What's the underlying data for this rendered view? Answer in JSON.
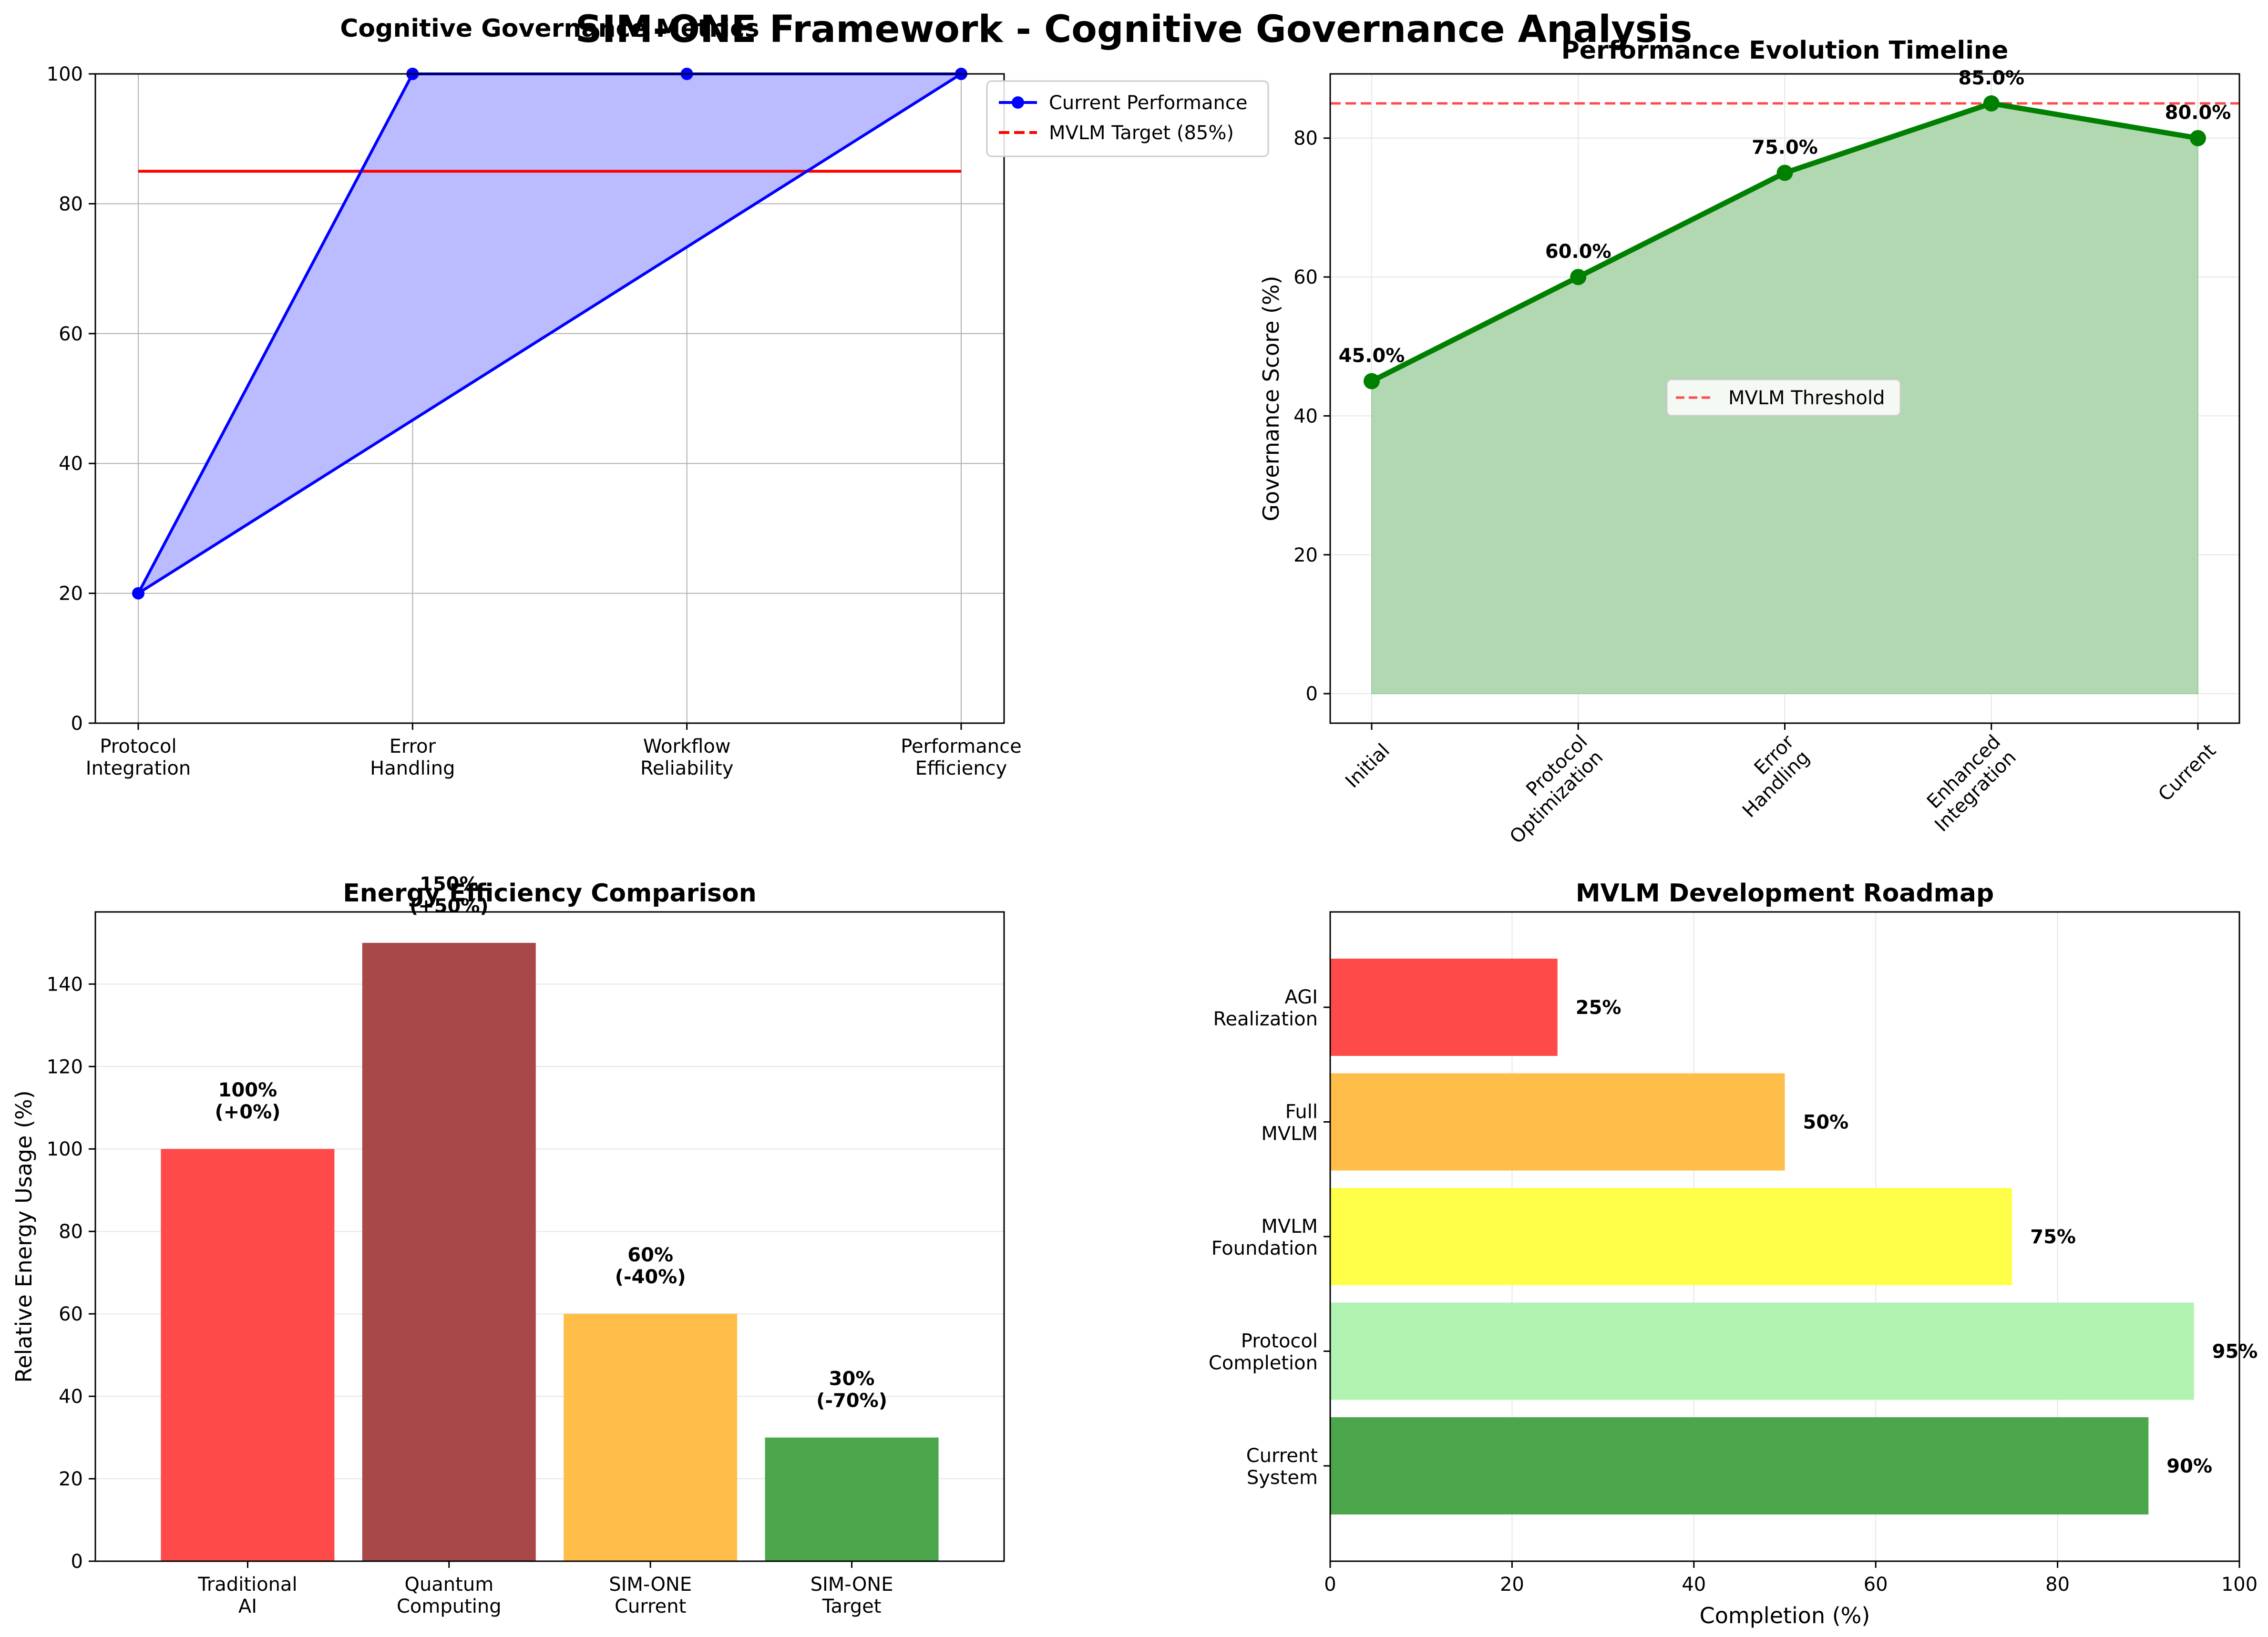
{
  "figure": {
    "suptitle": "SIM-ONE Framework - Cognitive Governance Analysis"
  },
  "colors": {
    "blue": "#0000ff",
    "blue_fill": "#bbbbff",
    "red": "#ff0000",
    "green": "#008000",
    "green_fill": "#b2d8b2",
    "threshold": "#ff4a4a",
    "grid": "#e6e6e6",
    "grid_dark": "#b0b0b0"
  },
  "chart_data": [
    {
      "id": "governance",
      "type": "line",
      "title": "Cognitive Governance Metrics",
      "categories": [
        "Protocol\nIntegration",
        "Error\nHandling",
        "Workflow\nReliability",
        "Performance\nEfficiency"
      ],
      "series": [
        {
          "name": "Current Performance",
          "values": [
            20,
            100,
            100,
            100
          ]
        },
        {
          "name": "MVLM Target (85%)",
          "values": [
            85,
            85,
            85,
            85
          ],
          "style": "dashed"
        }
      ],
      "ylim": [
        0,
        100
      ],
      "yticks": [
        0,
        20,
        40,
        60,
        80,
        100
      ],
      "grid": true,
      "legend": "upper-right-outside"
    },
    {
      "id": "timeline",
      "type": "area",
      "title": "Performance Evolution Timeline",
      "categories": [
        "Initial",
        "Protocol\nOptimization",
        "Error\nHandling",
        "Enhanced\nIntegration",
        "Current"
      ],
      "values": [
        45.0,
        60.0,
        75.0,
        85.0,
        80.0
      ],
      "data_labels": [
        "45.0%",
        "60.0%",
        "75.0%",
        "85.0%",
        "80.0%"
      ],
      "threshold": {
        "name": "MVLM Threshold",
        "value": 85
      },
      "ylabel": "Governance Score (%)",
      "ylim": [
        -4.25,
        89.25
      ],
      "yticks": [
        0,
        20,
        40,
        60,
        80
      ],
      "grid": true,
      "legend": "center"
    },
    {
      "id": "energy",
      "type": "bar",
      "title": "Energy Efficiency Comparison",
      "categories": [
        "Traditional\nAI",
        "Quantum\nComputing",
        "SIM-ONE\nCurrent",
        "SIM-ONE\nTarget"
      ],
      "values": [
        100,
        150,
        60,
        30
      ],
      "data_labels": [
        "100%\n(+0%)",
        "150%\n(+50%)",
        "60%\n(-40%)",
        "30%\n(-70%)"
      ],
      "bar_colors": [
        "#ff4a4a",
        "#a84848",
        "#ffbe4a",
        "#4ca64c"
      ],
      "ylabel": "Relative Energy Usage (%)",
      "ylim": [
        0,
        157.5
      ],
      "yticks": [
        0,
        20,
        40,
        60,
        80,
        100,
        120,
        140
      ],
      "grid": true
    },
    {
      "id": "roadmap",
      "type": "bar",
      "orientation": "horizontal",
      "title": "MVLM Development Roadmap",
      "categories": [
        "Current\nSystem",
        "Protocol\nCompletion",
        "MVLM\nFoundation",
        "Full\nMVLM",
        "AGI\nRealization"
      ],
      "values": [
        90,
        95,
        75,
        50,
        25
      ],
      "data_labels": [
        "90%",
        "95%",
        "75%",
        "50%",
        "25%"
      ],
      "bar_colors": [
        "#4ca64c",
        "#b0f2b0",
        "#ffff4a",
        "#ffbe4a",
        "#ff4a4a"
      ],
      "xlabel": "Completion (%)",
      "xlim": [
        0,
        100
      ],
      "xticks": [
        0,
        20,
        40,
        60,
        80,
        100
      ],
      "grid": true
    }
  ]
}
